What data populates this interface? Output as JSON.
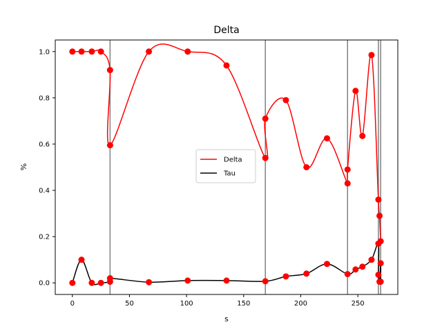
{
  "chart_data": {
    "type": "line",
    "title": "Delta",
    "xlabel": "s",
    "ylabel": "%",
    "xlim": [
      -15,
      285
    ],
    "ylim": [
      -0.05,
      1.05
    ],
    "xticks": [
      0,
      50,
      100,
      150,
      200,
      250
    ],
    "yticks": [
      0.0,
      0.2,
      0.4,
      0.6,
      0.8,
      1.0
    ],
    "xtick_labels": [
      "0",
      "50",
      "100",
      "150",
      "200",
      "250"
    ],
    "ytick_labels": [
      "0.0",
      "0.2",
      "0.4",
      "0.6",
      "0.8",
      "1.0"
    ],
    "grid": false,
    "legend_position": "center-right",
    "vertical_lines": [
      33,
      169,
      241,
      268,
      270
    ],
    "vertical_line_color": "#808080",
    "marker_color": "#ff0000",
    "series": [
      {
        "name": "Delta",
        "color": "#ff0000",
        "x": [
          0,
          8,
          17,
          25,
          33,
          33,
          67,
          101,
          135,
          169,
          169,
          187,
          205,
          223,
          241,
          241,
          248,
          254,
          262,
          268,
          269,
          270
        ],
        "y": [
          1.0,
          1.0,
          1.0,
          1.0,
          0.92,
          0.595,
          1.0,
          1.0,
          0.94,
          0.54,
          0.71,
          0.79,
          0.5,
          0.625,
          0.43,
          0.49,
          0.83,
          0.635,
          0.985,
          0.36,
          0.29,
          0.18
        ]
      },
      {
        "name": "Tau",
        "color": "#000000",
        "x": [
          0,
          8,
          17,
          25,
          33,
          33,
          67,
          101,
          135,
          169,
          187,
          205,
          223,
          241,
          248,
          254,
          262,
          268,
          268,
          269,
          270,
          270
        ],
        "y": [
          0.0,
          0.1,
          0.0,
          0.0,
          0.005,
          0.02,
          0.003,
          0.01,
          0.01,
          0.007,
          0.028,
          0.04,
          0.082,
          0.038,
          0.058,
          0.07,
          0.1,
          0.17,
          0.035,
          0.005,
          0.085,
          0.005
        ]
      }
    ]
  }
}
